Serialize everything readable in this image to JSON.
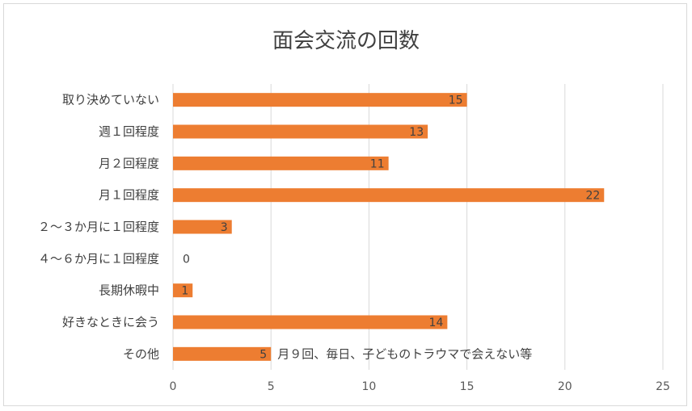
{
  "chart_data": {
    "type": "bar",
    "orientation": "horizontal",
    "title": "面会交流の回数",
    "categories": [
      "取り決めていない",
      "週１回程度",
      "月２回程度",
      "月１回程度",
      "２～３か月に１回程度",
      "４～６か月に１回程度",
      "長期休暇中",
      "好きなときに会う",
      "その他"
    ],
    "values": [
      15,
      13,
      11,
      22,
      3,
      0,
      1,
      14,
      5
    ],
    "xlim": [
      0,
      25
    ],
    "xticks": [
      0,
      5,
      10,
      15,
      20,
      25
    ],
    "grid": true,
    "bar_color": "#ed7d31",
    "annotation": {
      "category": "その他",
      "text": "月９回、毎日、子どものトラウマで会えない等"
    }
  }
}
